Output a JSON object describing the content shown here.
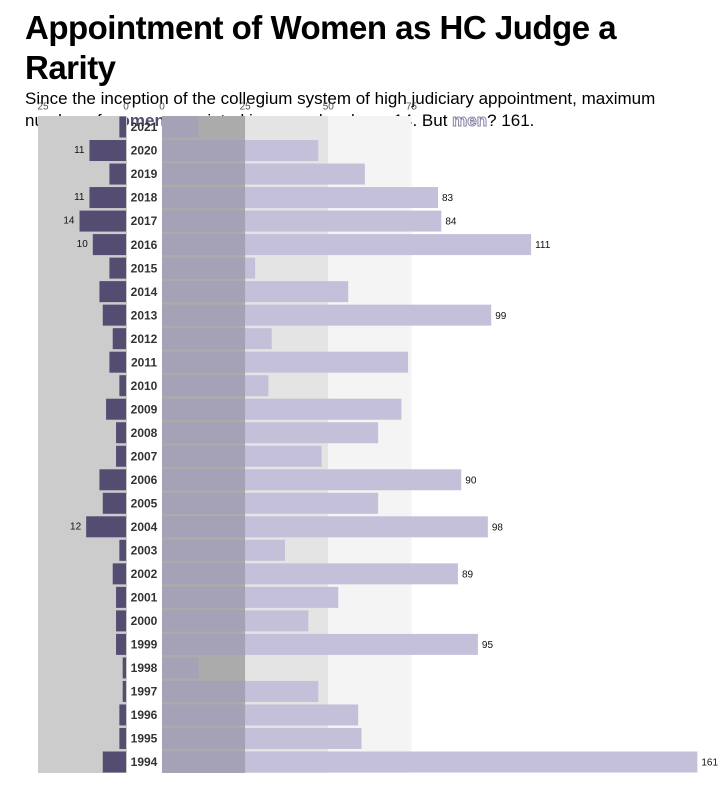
{
  "chart_data": {
    "type": "butterfly",
    "title": "Appointment of Women as HC Judge a Rarity",
    "subtitle": [
      "Since the inception of the collegium system of high judiciary appointment, maximum number of ",
      " appointed in a year has been 14. But ",
      "? 161."
    ],
    "categories": [
      "2021",
      "2020",
      "2019",
      "2018",
      "2017",
      "2016",
      "2015",
      "2014",
      "2013",
      "2012",
      "2011",
      "2010",
      "2009",
      "2008",
      "2007",
      "2006",
      "2005",
      "2004",
      "2003",
      "2002",
      "2001",
      "2000",
      "1999",
      "1998",
      "1997",
      "1996",
      "1995",
      "1994"
    ],
    "series": [
      {
        "name": "women",
        "color": "#554c72",
        "xlim": [
          0,
          26.5
        ],
        "xticks": [
          25,
          0
        ],
        "values": [
          2,
          11,
          5,
          11,
          14,
          10,
          5,
          8,
          7,
          4,
          5,
          2,
          6,
          3,
          3,
          8,
          7,
          12,
          2,
          4,
          3,
          3,
          3,
          1,
          1,
          2,
          2,
          7
        ],
        "value_labels": [
          null,
          "11",
          null,
          "11",
          "14",
          "10",
          null,
          null,
          null,
          null,
          null,
          null,
          null,
          null,
          null,
          null,
          null,
          "12",
          null,
          null,
          null,
          null,
          null,
          null,
          null,
          null,
          null,
          null
        ]
      },
      {
        "name": "men",
        "color": "#c5c0da",
        "xlim": [
          0,
          166
        ],
        "xticks": [
          0,
          25,
          50,
          75
        ],
        "values": [
          11,
          47,
          61,
          83,
          84,
          111,
          28,
          56,
          99,
          33,
          74,
          32,
          72,
          65,
          48,
          90,
          65,
          98,
          37,
          89,
          53,
          44,
          95,
          11,
          47,
          59,
          60,
          161
        ],
        "value_labels": [
          null,
          null,
          null,
          "83",
          "84",
          "111",
          null,
          null,
          "99",
          null,
          null,
          null,
          null,
          null,
          null,
          "90",
          null,
          "98",
          null,
          "89",
          null,
          null,
          "95",
          null,
          null,
          null,
          null,
          "161"
        ]
      }
    ]
  }
}
